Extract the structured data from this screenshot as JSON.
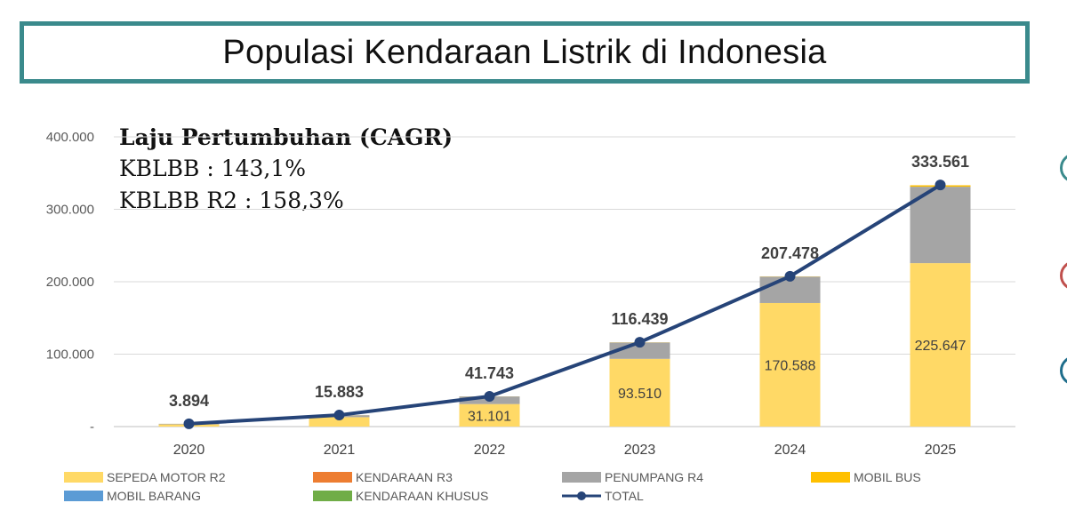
{
  "header": {
    "title": "Populasi Kendaraan Listrik di Indonesia"
  },
  "cagr": {
    "heading": "Laju Pertumbuhan (CAGR)",
    "line1": "KBLBB : 143,1%",
    "line2": "KBLBB R2 : 158,3%"
  },
  "colors": {
    "sepeda_motor_r2": "#ffd966",
    "kendaraan_r3": "#ed7d31",
    "penumpang_r4": "#a5a5a5",
    "mobil_bus": "#ffc000",
    "mobil_barang": "#5b9bd5",
    "kendaraan_khusus": "#70ad47",
    "total": "#264478",
    "title_border": "#3a8a8c"
  },
  "chart_data": {
    "type": "bar",
    "stacked": true,
    "categories": [
      "2020",
      "2021",
      "2022",
      "2023",
      "2024",
      "2025"
    ],
    "ylim": [
      0,
      400000
    ],
    "yticks": [
      0,
      100000,
      200000,
      300000,
      400000
    ],
    "ytick_labels": [
      "-",
      "100.000",
      "200.000",
      "300.000",
      "400.000"
    ],
    "grid": true,
    "legend_position": "bottom",
    "series": [
      {
        "name": "SEPEDA MOTOR R2",
        "key": "sepeda_motor_r2",
        "values": [
          3000,
          13000,
          31101,
          93510,
          170588,
          225647
        ],
        "labels": [
          "",
          "",
          "31.101",
          "93.510",
          "170.588",
          "225.647"
        ]
      },
      {
        "name": "KENDARAAN R3",
        "key": "kendaraan_r3",
        "values": [
          0,
          0,
          0,
          0,
          0,
          0
        ]
      },
      {
        "name": "PENUMPANG R4",
        "key": "penumpang_r4",
        "values": [
          800,
          2700,
          10500,
          22600,
          36500,
          105500
        ]
      },
      {
        "name": "MOBIL BUS",
        "key": "mobil_bus",
        "values": [
          50,
          100,
          100,
          200,
          300,
          2000
        ]
      },
      {
        "name": "MOBIL BARANG",
        "key": "mobil_barang",
        "values": [
          0,
          0,
          0,
          0,
          0,
          0
        ]
      },
      {
        "name": "KENDARAAN KHUSUS",
        "key": "kendaraan_khusus",
        "values": [
          0,
          0,
          0,
          0,
          0,
          0
        ]
      }
    ],
    "total": {
      "name": "TOTAL",
      "values": [
        3894,
        15883,
        41743,
        116439,
        207478,
        333561
      ],
      "labels": [
        "3.894",
        "15.883",
        "41.743",
        "116.439",
        "207.478",
        "333.561"
      ]
    }
  }
}
